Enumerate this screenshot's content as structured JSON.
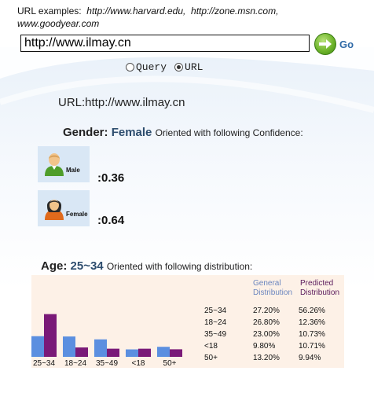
{
  "examples": {
    "label": "URL examples:",
    "items": [
      "http://www.harvard.edu,",
      "http://zone.msn.com,",
      "www.goodyear.com"
    ]
  },
  "search": {
    "value": "http://www.ilmay.cn",
    "go_label": "Go"
  },
  "mode": {
    "options": [
      "Query",
      "URL"
    ],
    "selected": "URL"
  },
  "result": {
    "url_text": "URL:http://www.ilmay.cn"
  },
  "gender": {
    "label": "Gender:",
    "value": "Female",
    "suffix": "Oriented with following Confidence:",
    "items": [
      {
        "label": "Male",
        "score": ":0.36"
      },
      {
        "label": "Female",
        "score": ":0.64"
      }
    ]
  },
  "age": {
    "label": "Age:",
    "value": "25~34",
    "suffix": "Oriented with following distribution:",
    "col_general": "General Distribution",
    "col_predicted": "Predicted Distribution"
  },
  "colors": {
    "general": "#5b8fe0",
    "predicted": "#7a1a78",
    "panel": "#fdf1e7"
  },
  "chart_data": {
    "type": "bar",
    "categories": [
      "25~34",
      "18~24",
      "35~49",
      "<18",
      "50+"
    ],
    "series": [
      {
        "name": "General Distribution",
        "values": [
          27.2,
          26.8,
          23.0,
          9.8,
          13.2
        ]
      },
      {
        "name": "Predicted Distribution",
        "values": [
          56.26,
          12.36,
          10.73,
          10.71,
          9.94
        ]
      }
    ],
    "table": [
      {
        "group": "25~34",
        "general": "27.20%",
        "predicted": "56.26%"
      },
      {
        "group": "18~24",
        "general": "26.80%",
        "predicted": "12.36%"
      },
      {
        "group": "35~49",
        "general": "23.00%",
        "predicted": "10.73%"
      },
      {
        "group": "<18",
        "general": "9.80%",
        "predicted": "10.71%"
      },
      {
        "group": "50+",
        "general": "13.20%",
        "predicted": "9.94%"
      }
    ],
    "ylim": [
      0,
      60
    ]
  }
}
